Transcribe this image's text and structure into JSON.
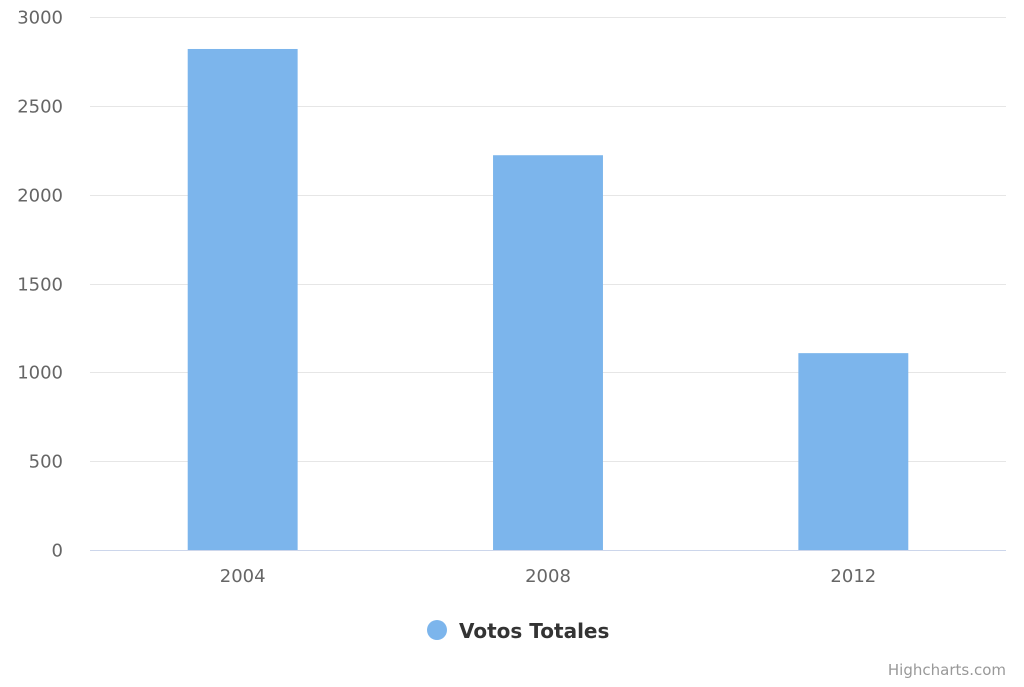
{
  "chart_data": {
    "type": "bar",
    "categories": [
      "2004",
      "2008",
      "2012"
    ],
    "series": [
      {
        "name": "Votos Totales",
        "values": [
          2820,
          2222,
          1108
        ],
        "color": "#7cb5ec"
      }
    ],
    "ylim": [
      0,
      3000
    ],
    "yticks": [
      "0",
      "500",
      "1000",
      "1500",
      "2000",
      "2500",
      "3000"
    ],
    "grid": true,
    "legend_position": "bottom-center",
    "credits": "Highcharts.com"
  }
}
